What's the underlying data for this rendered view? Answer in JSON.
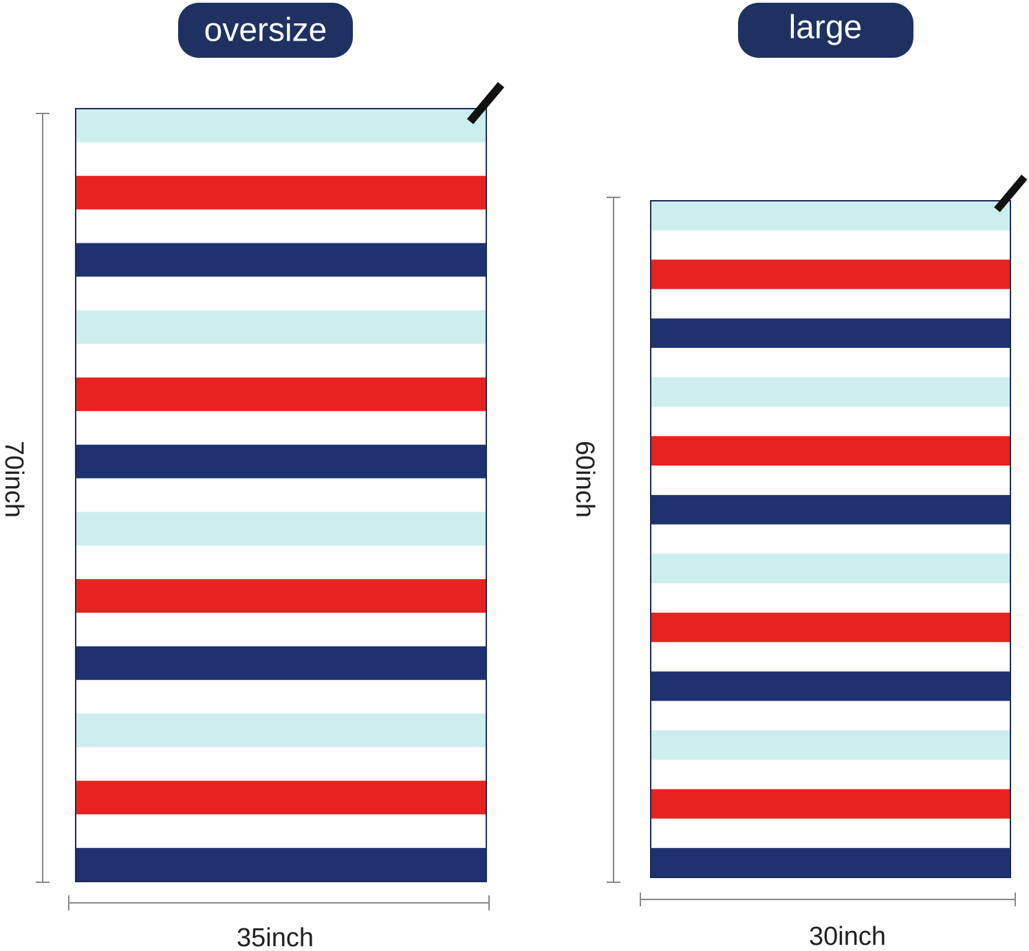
{
  "towels": [
    {
      "label": "oversize",
      "height": "70inch",
      "width": "35inch"
    },
    {
      "label": "large",
      "height": "60inch",
      "width": "30inch"
    }
  ]
}
